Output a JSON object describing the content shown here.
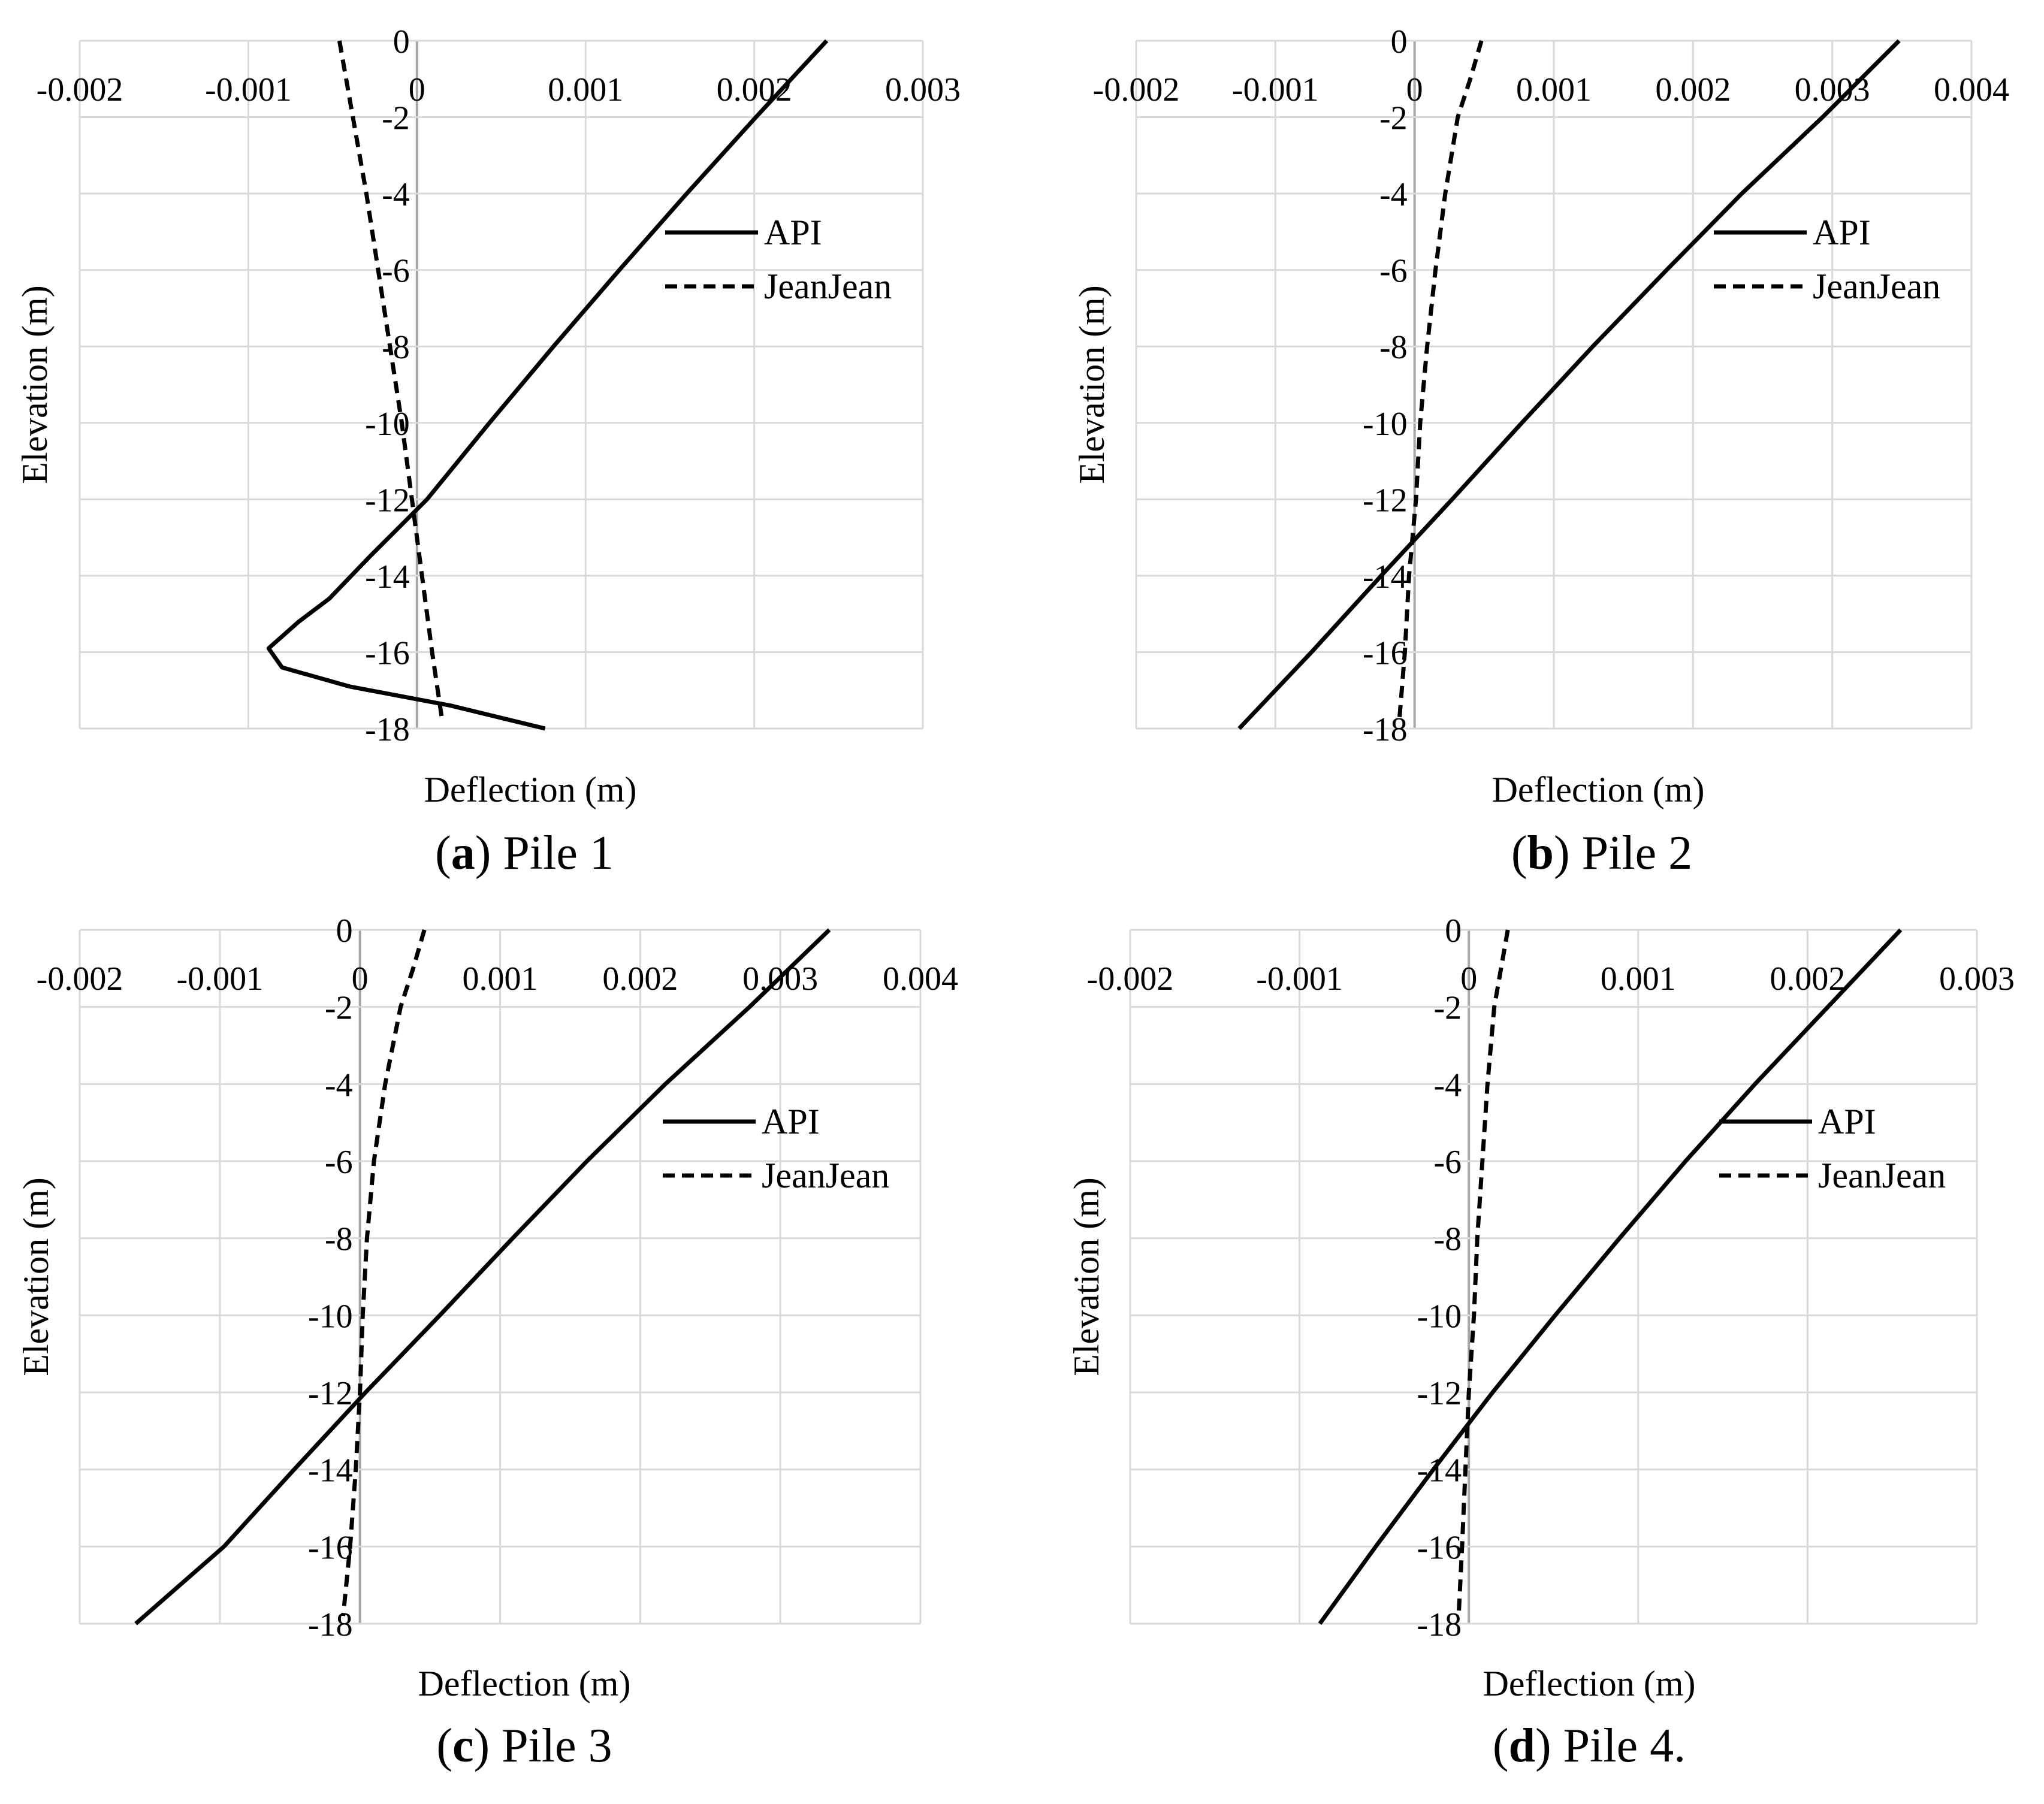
{
  "chart_data": [
    {
      "type": "line",
      "caption": {
        "open": "(",
        "letter": "a",
        "close": ") Pile 1"
      },
      "xlabel": "Deflection (m)",
      "ylabel": "Elevation (m)",
      "xlim": [
        -0.002,
        0.003
      ],
      "ylim": [
        -18,
        0
      ],
      "x_ticks": [
        -0.002,
        -0.001,
        0,
        0.001,
        0.002,
        0.003
      ],
      "x_tick_labels": [
        "-0.002",
        "-0.001",
        "0",
        "0.001",
        "0.002",
        "0.003"
      ],
      "y_ticks": [
        0,
        -2,
        -4,
        -6,
        -8,
        -10,
        -12,
        -14,
        -16,
        -18
      ],
      "y_tick_labels": [
        "0",
        "-2",
        "-4",
        "-6",
        "-8",
        "-10",
        "-12",
        "-14",
        "-16",
        "-18"
      ],
      "grid": true,
      "legend_position": "upper-right",
      "series": [
        {
          "name": "API",
          "style": "solid",
          "points": [
            [
              0.00243,
              0
            ],
            [
              0.00201,
              -2
            ],
            [
              0.0016,
              -4
            ],
            [
              0.0012,
              -6
            ],
            [
              0.00081,
              -8
            ],
            [
              0.00043,
              -10
            ],
            [
              6e-05,
              -12
            ],
            [
              -0.00028,
              -13.5
            ],
            [
              -0.00052,
              -14.6
            ],
            [
              -0.0007,
              -15.2
            ],
            [
              -0.00088,
              -15.9
            ],
            [
              -0.0008,
              -16.4
            ],
            [
              -0.0004,
              -16.9
            ],
            [
              0.0002,
              -17.4
            ],
            [
              0.00076,
              -18
            ]
          ]
        },
        {
          "name": "JeanJean",
          "style": "dashed",
          "points": [
            [
              -0.00046,
              0
            ],
            [
              -0.00038,
              -2
            ],
            [
              -0.0003,
              -4
            ],
            [
              -0.00023,
              -6
            ],
            [
              -0.00016,
              -8
            ],
            [
              -9e-05,
              -10
            ],
            [
              -3e-05,
              -12
            ],
            [
              3e-05,
              -14
            ],
            [
              9e-05,
              -16
            ],
            [
              0.00015,
              -17.8
            ]
          ]
        }
      ]
    },
    {
      "type": "line",
      "caption": {
        "open": "(",
        "letter": "b",
        "close": ") Pile 2"
      },
      "xlabel": "Deflection (m)",
      "ylabel": "Elevation (m)",
      "xlim": [
        -0.002,
        0.004
      ],
      "ylim": [
        -18,
        0
      ],
      "x_ticks": [
        -0.002,
        -0.001,
        0,
        0.001,
        0.002,
        0.003,
        0.004
      ],
      "x_tick_labels": [
        "-0.002",
        "-0.001",
        "0",
        "0.001",
        "0.002",
        "0.003",
        "0.004"
      ],
      "y_ticks": [
        0,
        -2,
        -4,
        -6,
        -8,
        -10,
        -12,
        -14,
        -16,
        -18
      ],
      "y_tick_labels": [
        "0",
        "-2",
        "-4",
        "-6",
        "-8",
        "-10",
        "-12",
        "-14",
        "-16",
        "-18"
      ],
      "grid": true,
      "legend_position": "upper-right",
      "series": [
        {
          "name": "API",
          "style": "solid",
          "points": [
            [
              0.00348,
              0
            ],
            [
              0.00293,
              -2
            ],
            [
              0.00235,
              -4
            ],
            [
              0.00181,
              -6
            ],
            [
              0.00128,
              -8
            ],
            [
              0.00077,
              -10
            ],
            [
              0.00027,
              -12
            ],
            [
              -0.00024,
              -14
            ],
            [
              -0.00074,
              -16
            ],
            [
              -0.00126,
              -18
            ]
          ]
        },
        {
          "name": "JeanJean",
          "style": "dashed",
          "points": [
            [
              0.00048,
              0
            ],
            [
              0.0004,
              -1
            ],
            [
              0.00031,
              -2
            ],
            [
              0.00022,
              -4
            ],
            [
              0.00015,
              -6
            ],
            [
              9e-05,
              -8
            ],
            [
              4e-05,
              -10
            ],
            [
              1e-05,
              -12
            ],
            [
              -4e-05,
              -14
            ],
            [
              -7e-05,
              -16
            ],
            [
              -0.00011,
              -17.8
            ]
          ]
        }
      ]
    },
    {
      "type": "line",
      "caption": {
        "open": "(",
        "letter": "c",
        "close": ") Pile 3"
      },
      "xlabel": "Deflection (m)",
      "ylabel": "Elevation (m)",
      "xlim": [
        -0.002,
        0.004
      ],
      "ylim": [
        -18,
        0
      ],
      "x_ticks": [
        -0.002,
        -0.001,
        0,
        0.001,
        0.002,
        0.003,
        0.004
      ],
      "x_tick_labels": [
        "-0.002",
        "-0.001",
        "0",
        "0.001",
        "0.002",
        "0.003",
        "0.004"
      ],
      "y_ticks": [
        0,
        -2,
        -4,
        -6,
        -8,
        -10,
        -12,
        -14,
        -16,
        -18
      ],
      "y_tick_labels": [
        "0",
        "-2",
        "-4",
        "-6",
        "-8",
        "-10",
        "-12",
        "-14",
        "-16",
        "-18"
      ],
      "grid": true,
      "legend_position": "upper-right",
      "series": [
        {
          "name": "API",
          "style": "solid",
          "points": [
            [
              0.00335,
              0
            ],
            [
              0.00278,
              -2
            ],
            [
              0.00218,
              -4
            ],
            [
              0.00162,
              -6
            ],
            [
              0.00109,
              -8
            ],
            [
              0.00057,
              -10
            ],
            [
              4e-05,
              -12
            ],
            [
              -0.00047,
              -14
            ],
            [
              -0.00097,
              -16
            ],
            [
              -0.0016,
              -18
            ]
          ]
        },
        {
          "name": "JeanJean",
          "style": "dashed",
          "points": [
            [
              0.00046,
              0
            ],
            [
              0.00038,
              -1
            ],
            [
              0.00029,
              -2
            ],
            [
              0.00018,
              -4
            ],
            [
              0.0001,
              -6
            ],
            [
              5e-05,
              -8
            ],
            [
              2e-05,
              -10
            ],
            [
              0.0,
              -12
            ],
            [
              -3e-05,
              -14
            ],
            [
              -7e-05,
              -16
            ],
            [
              -0.00012,
              -17.8
            ]
          ]
        }
      ]
    },
    {
      "type": "line",
      "caption": {
        "open": "(",
        "letter": "d",
        "close": ") Pile 4."
      },
      "xlabel": "Deflection (m)",
      "ylabel": "Elevation (m)",
      "xlim": [
        -0.002,
        0.003
      ],
      "ylim": [
        -18,
        0
      ],
      "x_ticks": [
        -0.002,
        -0.001,
        0,
        0.001,
        0.002,
        0.003
      ],
      "x_tick_labels": [
        "-0.002",
        "-0.001",
        "0",
        "0.001",
        "0.002",
        "0.003"
      ],
      "y_ticks": [
        0,
        -2,
        -4,
        -6,
        -8,
        -10,
        -12,
        -14,
        -16,
        -18
      ],
      "y_tick_labels": [
        "0",
        "-2",
        "-4",
        "-6",
        "-8",
        "-10",
        "-12",
        "-14",
        "-16",
        "-18"
      ],
      "grid": true,
      "legend_position": "upper-right",
      "series": [
        {
          "name": "API",
          "style": "solid",
          "points": [
            [
              0.00255,
              0
            ],
            [
              0.00212,
              -2
            ],
            [
              0.00169,
              -4
            ],
            [
              0.00128,
              -6
            ],
            [
              0.00089,
              -8
            ],
            [
              0.00051,
              -10
            ],
            [
              0.00014,
              -12
            ],
            [
              -0.00021,
              -14
            ],
            [
              -0.00055,
              -16
            ],
            [
              -0.00088,
              -18
            ]
          ]
        },
        {
          "name": "JeanJean",
          "style": "dashed",
          "points": [
            [
              0.00023,
              0
            ],
            [
              0.00019,
              -1
            ],
            [
              0.00015,
              -2
            ],
            [
              0.00011,
              -4
            ],
            [
              8e-05,
              -6
            ],
            [
              5e-05,
              -8
            ],
            [
              3e-05,
              -10
            ],
            [
              0.0,
              -12
            ],
            [
              -2e-05,
              -14
            ],
            [
              -4e-05,
              -16
            ],
            [
              -6e-05,
              -17.8
            ]
          ]
        }
      ]
    }
  ]
}
